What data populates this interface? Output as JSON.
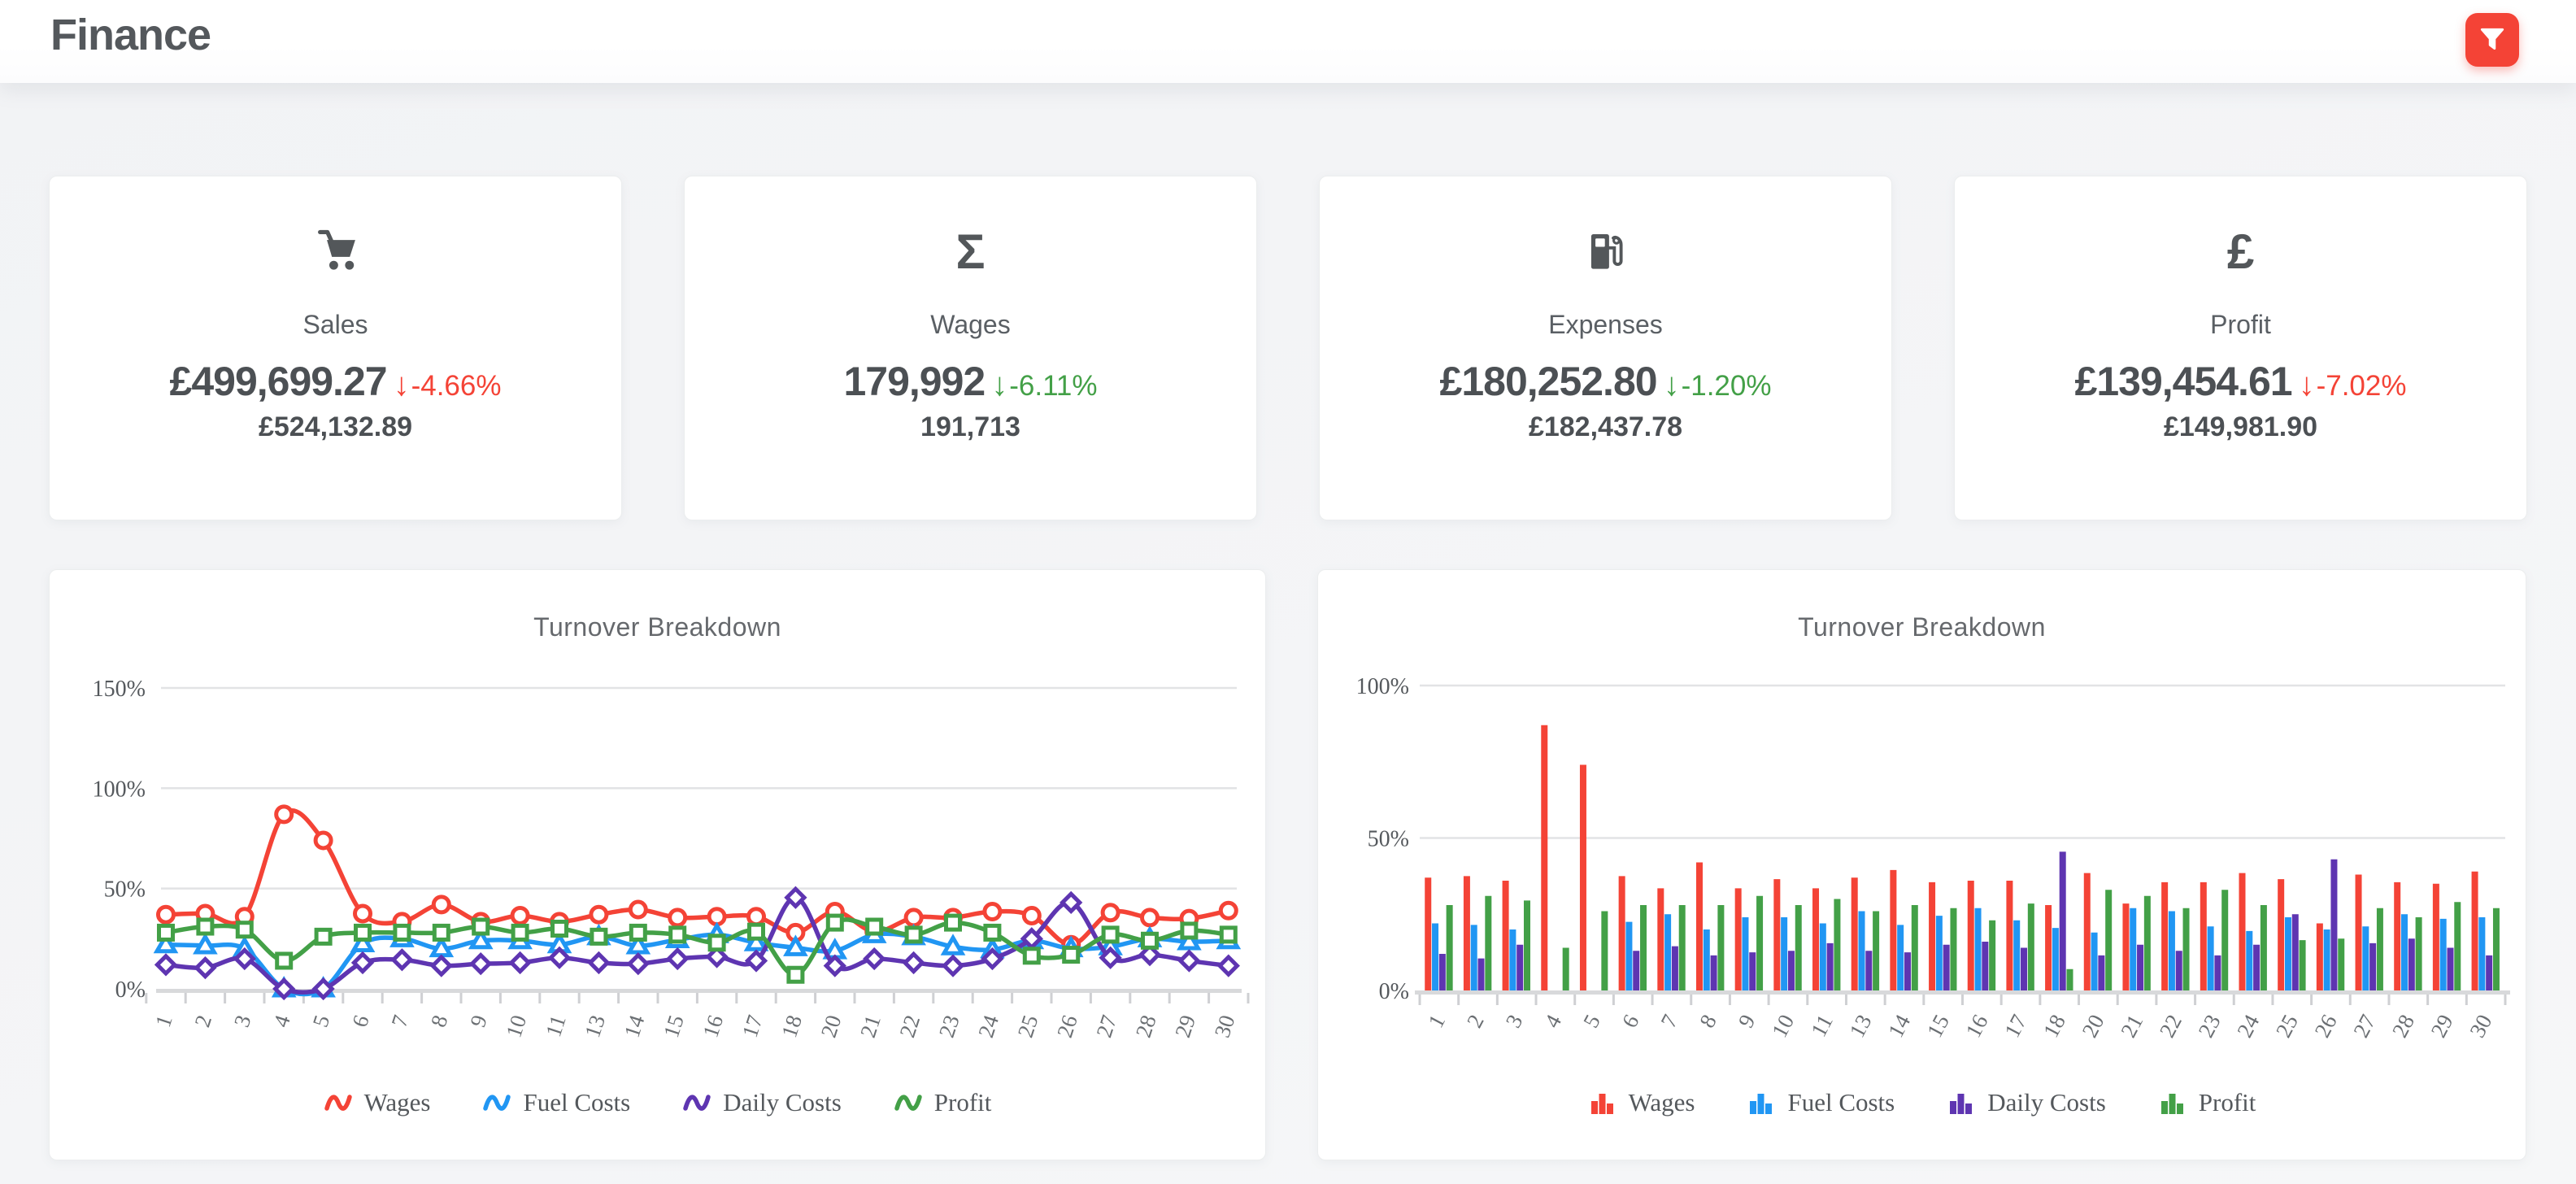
{
  "header": {
    "title": "Finance"
  },
  "toolbar": {
    "filter_icon": "funnel-icon"
  },
  "cards": [
    {
      "icon": "cart-icon",
      "label": "Sales",
      "value": "£499,699.27",
      "delta_arrow": "↓",
      "delta": "-4.66%",
      "delta_color": "#f44336",
      "subvalue": "£524,132.89"
    },
    {
      "icon": "sigma-icon",
      "icon_glyph": "Σ",
      "label": "Wages",
      "value": "179,992",
      "delta_arrow": "↓",
      "delta": "-6.11%",
      "delta_color": "#43a047",
      "subvalue": "191,713"
    },
    {
      "icon": "fuel-pump-icon",
      "label": "Expenses",
      "value": "£180,252.80",
      "delta_arrow": "↓",
      "delta": "-1.20%",
      "delta_color": "#43a047",
      "subvalue": "£182,437.78"
    },
    {
      "icon": "pound-icon",
      "icon_glyph": "£",
      "label": "Profit",
      "value": "£139,454.61",
      "delta_arrow": "↓",
      "delta": "-7.02%",
      "delta_color": "#f44336",
      "subvalue": "£149,981.90"
    }
  ],
  "colors": {
    "wages": "#f44336",
    "fuel_costs": "#2196f3",
    "daily_costs": "#5e35b1",
    "profit": "#43a047"
  },
  "chart_data": [
    {
      "type": "line",
      "title": "Turnover Breakdown",
      "xlabel": "",
      "ylabel": "",
      "ylim": [
        0,
        150
      ],
      "yticks": [
        "0%",
        "50%",
        "100%",
        "150%"
      ],
      "grid": true,
      "legend_position": "bottom",
      "categories": [
        "1",
        "2",
        "3",
        "4",
        "5",
        "6",
        "7",
        "8",
        "9",
        "10",
        "11",
        "13",
        "14",
        "15",
        "16",
        "17",
        "18",
        "20",
        "21",
        "22",
        "23",
        "24",
        "25",
        "26",
        "27",
        "28",
        "29",
        "30"
      ],
      "series": [
        {
          "name": "Wages",
          "color": "#f44336",
          "marker": "circle",
          "values": [
            37,
            37.5,
            36,
            87,
            74,
            37.5,
            33.5,
            42,
            33.5,
            36.5,
            33.5,
            37,
            39.5,
            35.5,
            36,
            36,
            28,
            38.5,
            28.5,
            35.5,
            35.5,
            38.5,
            36.5,
            22,
            38,
            35.5,
            35,
            39
          ]
        },
        {
          "name": "Fuel Costs",
          "color": "#2196f3",
          "marker": "triangle",
          "values": [
            22,
            21.5,
            20,
            0,
            0,
            22.5,
            25,
            20,
            24,
            24,
            22,
            26,
            21.5,
            24.5,
            27,
            23,
            20.5,
            19,
            27,
            26,
            21,
            19.5,
            24,
            20,
            21,
            25,
            23.5,
            24
          ]
        },
        {
          "name": "Daily Costs",
          "color": "#5e35b1",
          "marker": "diamond",
          "values": [
            12,
            10.5,
            15,
            0,
            0,
            13,
            14.5,
            11.5,
            12.5,
            13,
            15.5,
            13,
            12.5,
            15,
            16,
            14,
            45.5,
            11.5,
            15,
            13,
            11.5,
            15,
            25,
            43,
            15.5,
            17,
            14,
            11.5
          ]
        },
        {
          "name": "Profit",
          "color": "#43a047",
          "marker": "square",
          "values": [
            28,
            31,
            29.5,
            14,
            26,
            28,
            28,
            28,
            31,
            28,
            30,
            26,
            28,
            27,
            23,
            28.5,
            7,
            33,
            31,
            27,
            33,
            28,
            16.5,
            17,
            27,
            24,
            29,
            27
          ]
        }
      ]
    },
    {
      "type": "bar",
      "title": "Turnover Breakdown",
      "xlabel": "",
      "ylabel": "",
      "ylim": [
        0,
        100
      ],
      "yticks": [
        "0%",
        "50%",
        "100%"
      ],
      "grid": true,
      "legend_position": "bottom",
      "categories": [
        "1",
        "2",
        "3",
        "4",
        "5",
        "6",
        "7",
        "8",
        "9",
        "10",
        "11",
        "13",
        "14",
        "15",
        "16",
        "17",
        "18",
        "20",
        "21",
        "22",
        "23",
        "24",
        "25",
        "26",
        "27",
        "28",
        "29",
        "30"
      ],
      "series": [
        {
          "name": "Wages",
          "color": "#f44336",
          "marker": "bar",
          "values": [
            37,
            37.5,
            36,
            87,
            74,
            37.5,
            33.5,
            42,
            33.5,
            36.5,
            33.5,
            37,
            39.5,
            35.5,
            36,
            36,
            28,
            38.5,
            28.5,
            35.5,
            35.5,
            38.5,
            36.5,
            22,
            38,
            35.5,
            35,
            39
          ]
        },
        {
          "name": "Fuel Costs",
          "color": "#2196f3",
          "marker": "bar",
          "values": [
            22,
            21.5,
            20,
            0,
            0,
            22.5,
            25,
            20,
            24,
            24,
            22,
            26,
            21.5,
            24.5,
            27,
            23,
            20.5,
            19,
            27,
            26,
            21,
            19.5,
            24,
            20,
            21,
            25,
            23.5,
            24
          ]
        },
        {
          "name": "Daily Costs",
          "color": "#5e35b1",
          "marker": "bar",
          "values": [
            12,
            10.5,
            15,
            0,
            0,
            13,
            14.5,
            11.5,
            12.5,
            13,
            15.5,
            13,
            12.5,
            15,
            16,
            14,
            45.5,
            11.5,
            15,
            13,
            11.5,
            15,
            25,
            43,
            15.5,
            17,
            14,
            11.5
          ]
        },
        {
          "name": "Profit",
          "color": "#43a047",
          "marker": "bar",
          "values": [
            28,
            31,
            29.5,
            14,
            26,
            28,
            28,
            28,
            31,
            28,
            30,
            26,
            28,
            27,
            23,
            28.5,
            7,
            33,
            31,
            27,
            33,
            28,
            16.5,
            17,
            27,
            24,
            29,
            27
          ]
        }
      ]
    }
  ]
}
